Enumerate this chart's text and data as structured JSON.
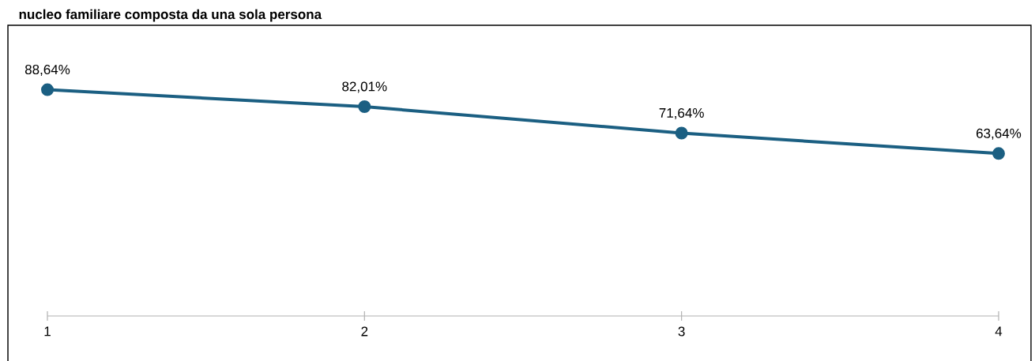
{
  "chart_data": {
    "type": "line",
    "title": "nucleo familiare composta da una sola persona",
    "categories": [
      "1",
      "2",
      "3",
      "4"
    ],
    "values": [
      88.64,
      82.01,
      71.64,
      63.64
    ],
    "value_labels": [
      "88,64%",
      "82,01%",
      "71,64%",
      "63,64%"
    ],
    "color": "#1b5f82",
    "marker": "circle"
  }
}
